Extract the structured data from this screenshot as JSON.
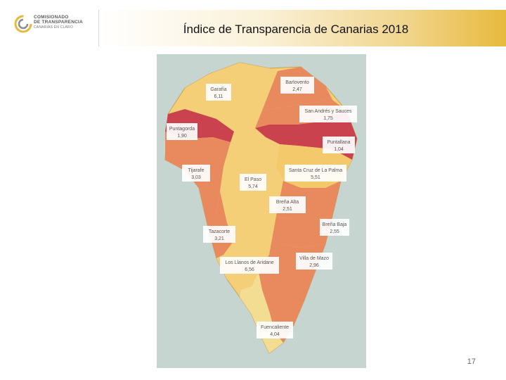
{
  "logo": {
    "line1": "COMISIONADO",
    "line2": "DE TRANSPARENCIA",
    "line3": "CANARIAS EN CLARO",
    "brand_color": "#e7b93c"
  },
  "title": "Índice de Transparencia de Canarias 2018",
  "page_number": "17",
  "legend_colors": {
    "high": "#c9424e",
    "mid": "#e88a5e",
    "low": "#f5cf77",
    "lowest": "#f3dd93"
  },
  "municipalities": [
    {
      "name": "Garafía",
      "value": "6,11",
      "fill": "#f5cf77"
    },
    {
      "name": "Barlovento",
      "value": "2,47",
      "fill": "#e88a5e"
    },
    {
      "name": "San Andrés y Sauces",
      "value": "1,75",
      "fill": "#e88a5e"
    },
    {
      "name": "Puntagorda",
      "value": "1,90",
      "fill": "#c9424e"
    },
    {
      "name": "Puntallana",
      "value": "1,04",
      "fill": "#c9424e"
    },
    {
      "name": "Tijarafe",
      "value": "3,03",
      "fill": "#e88a5e"
    },
    {
      "name": "Santa Cruz de La Palma",
      "value": "5,51",
      "fill": "#f3c96c"
    },
    {
      "name": "El Paso",
      "value": "5,74",
      "fill": "#f5cf77"
    },
    {
      "name": "Breña Alta",
      "value": "2,51",
      "fill": "#e88a5e"
    },
    {
      "name": "Breña Baja",
      "value": "2,55",
      "fill": "#e88a5e"
    },
    {
      "name": "Tazacorte",
      "value": "3,21",
      "fill": "#e88a5e"
    },
    {
      "name": "Los Llanos de Aridane",
      "value": "6,56",
      "fill": "#f5cf77"
    },
    {
      "name": "Villa de Mazo",
      "value": "2,96",
      "fill": "#e88a5e"
    },
    {
      "name": "Fuencaliente",
      "value": "4,04",
      "fill": "#f3dd93"
    }
  ]
}
